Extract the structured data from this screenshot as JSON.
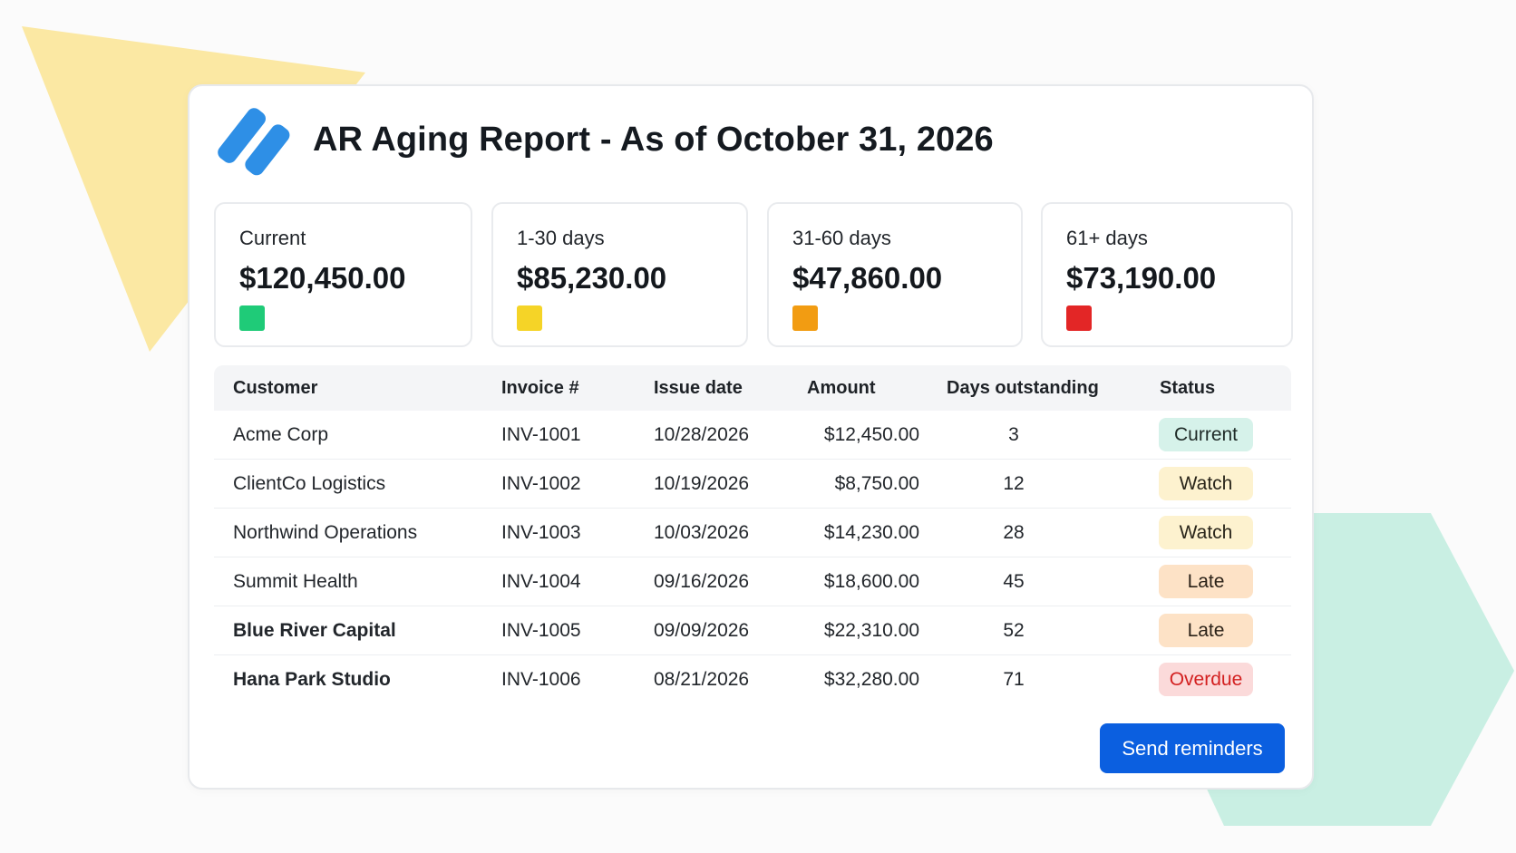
{
  "report": {
    "title": "AR Aging Report - As of October 31, 2026"
  },
  "summary": [
    {
      "label": "Current",
      "amount": "$120,450.00",
      "color": "#1fcb78"
    },
    {
      "label": "1-30 days",
      "amount": "$85,230.00",
      "color": "#f5d427"
    },
    {
      "label": "31-60 days",
      "amount": "$47,860.00",
      "color": "#f29c12"
    },
    {
      "label": "61+ days",
      "amount": "$73,190.00",
      "color": "#e32626"
    }
  ],
  "table": {
    "headers": [
      "Customer",
      "Invoice #",
      "Issue date",
      "Amount",
      "Days outstanding",
      "Status"
    ],
    "rows": [
      {
        "customer": "Acme Corp",
        "invoice": "INV-1001",
        "date": "10/28/2026",
        "amount": "$12,450.00",
        "days": "3",
        "status": "Current"
      },
      {
        "customer": "ClientCo Logistics",
        "invoice": "INV-1002",
        "date": "10/19/2026",
        "amount": "$8,750.00",
        "days": "12",
        "status": "Watch"
      },
      {
        "customer": "Northwind Operations",
        "invoice": "INV-1003",
        "date": "10/03/2026",
        "amount": "$14,230.00",
        "days": "28",
        "status": "Watch"
      },
      {
        "customer": "Summit Health",
        "invoice": "INV-1004",
        "date": "09/16/2026",
        "amount": "$18,600.00",
        "days": "45",
        "status": "Late"
      },
      {
        "customer": "Blue River Capital",
        "invoice": "INV-1005",
        "date": "09/09/2026",
        "amount": "$22,310.00",
        "days": "52",
        "status": "Late"
      },
      {
        "customer": "Hana Park Studio",
        "invoice": "INV-1006",
        "date": "08/21/2026",
        "amount": "$32,280.00",
        "days": "71",
        "status": "Overdue"
      }
    ]
  },
  "actions": {
    "send_reminders": "Send reminders"
  },
  "icons": {
    "logo": "brand-logo-icon"
  },
  "colors": {
    "brand": "#2e8fe6",
    "button": "#0b5fe0",
    "decor_yellow": "#fbe8a3",
    "decor_teal": "#c9efe3"
  }
}
